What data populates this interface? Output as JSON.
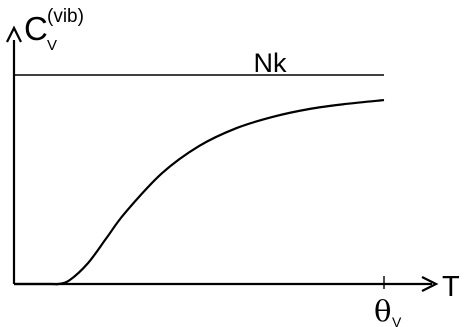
{
  "chart_data": {
    "type": "line",
    "title": "",
    "ylabel": {
      "main": "C",
      "sub": "V",
      "sup": "(vib)"
    },
    "xlabel": "T",
    "x_tick_labels": [
      {
        "main": "θ",
        "sub": "V"
      }
    ],
    "reference_line": {
      "label": "Nk",
      "value": 1
    },
    "series": [
      {
        "points": [
          [
            0.0,
            0.0
          ],
          [
            0.1,
            0.0
          ],
          [
            0.12,
            0.0
          ],
          [
            0.15,
            0.018
          ],
          [
            0.2,
            0.1
          ],
          [
            0.25,
            0.22
          ],
          [
            0.3,
            0.34
          ],
          [
            0.4,
            0.53
          ],
          [
            0.5,
            0.66
          ],
          [
            0.6,
            0.745
          ],
          [
            0.7,
            0.8
          ],
          [
            0.8,
            0.838
          ],
          [
            0.9,
            0.862
          ],
          [
            1.0,
            0.88
          ]
        ]
      }
    ],
    "xlim": [
      0,
      1
    ],
    "ylim": [
      0,
      1
    ],
    "grid": false,
    "legend": "none",
    "colors": {
      "line": "#000000",
      "background": "#ffffff"
    }
  }
}
